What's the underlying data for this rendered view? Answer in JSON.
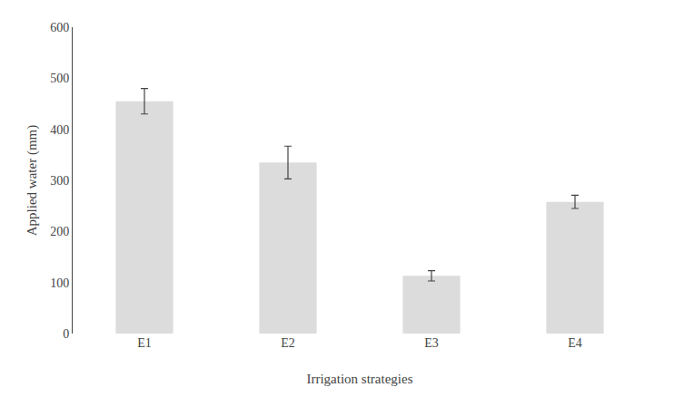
{
  "chart_data": {
    "type": "bar",
    "categories": [
      "E1",
      "E2",
      "E3",
      "E4"
    ],
    "values": [
      455,
      335,
      113,
      258
    ],
    "errors": [
      25,
      32,
      10,
      13
    ],
    "color": "#dcdcdc",
    "xlabel": "Irrigation strategies",
    "ylabel": "Applied water (mm)",
    "ylim": [
      0,
      600
    ],
    "yticks": [
      0,
      100,
      200,
      300,
      400,
      500,
      600
    ],
    "grid": false
  }
}
